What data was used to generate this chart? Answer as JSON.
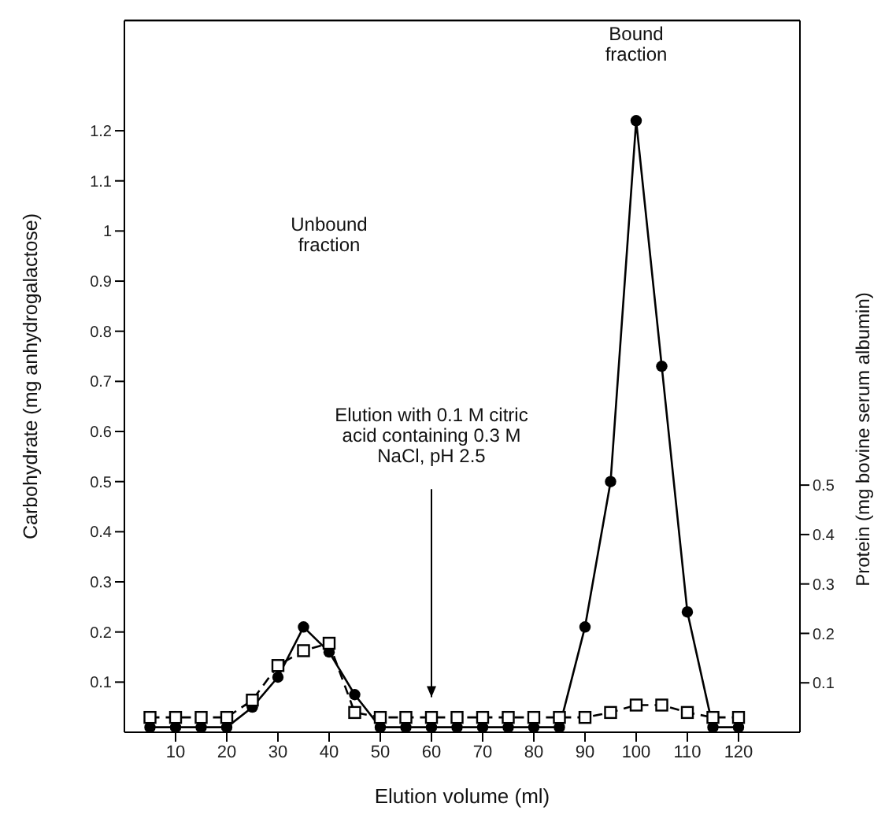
{
  "chart_data": {
    "type": "line",
    "xlabel": "Elution volume (ml)",
    "ylabel": "Carbohydrate (mg anhydrogalactose)",
    "y2label": "Protein (mg bovine serum albumin)",
    "x": [
      5,
      10,
      15,
      20,
      25,
      30,
      35,
      40,
      45,
      50,
      55,
      60,
      65,
      70,
      75,
      80,
      85,
      90,
      95,
      100,
      105,
      110,
      115,
      120
    ],
    "series": [
      {
        "color": "#000000",
        "marker": "circle",
        "line_style": "solid",
        "values": [
          0.01,
          0.01,
          0.01,
          0.01,
          0.05,
          0.11,
          0.21,
          0.16,
          0.075,
          0.01,
          0.01,
          0.01,
          0.01,
          0.01,
          0.01,
          0.01,
          0.01,
          0.21,
          0.5,
          1.22,
          0.73,
          0.24,
          0.01,
          0.01
        ]
      },
      {
        "color": "#000000",
        "marker": "square",
        "line_style": "dashed",
        "axis": "y2",
        "values": [
          0.03,
          0.03,
          0.03,
          0.03,
          0.065,
          0.135,
          0.165,
          0.18,
          0.04,
          0.03,
          0.03,
          0.03,
          0.03,
          0.03,
          0.03,
          0.03,
          0.03,
          0.03,
          0.04,
          0.055,
          0.055,
          0.04,
          0.03,
          0.03
        ]
      }
    ],
    "xlim": [
      0,
      132
    ],
    "xticks": [
      10,
      20,
      30,
      40,
      50,
      60,
      70,
      80,
      90,
      100,
      110,
      120
    ],
    "ylim": [
      0,
      1.42
    ],
    "yticks": [
      0.1,
      0.2,
      0.3,
      0.4,
      0.5,
      0.6,
      0.7,
      0.8,
      0.9,
      1.0,
      1.1,
      1.2
    ],
    "y2lim": [
      0,
      1.44
    ],
    "y2ticks": [
      0.1,
      0.2,
      0.3,
      0.4,
      0.5
    ],
    "annotations": [
      "Unbound fraction",
      "Bound fraction",
      "Elution with 0.1 M citric acid containing 0.3 M NaCl, pH 2.5"
    ]
  }
}
